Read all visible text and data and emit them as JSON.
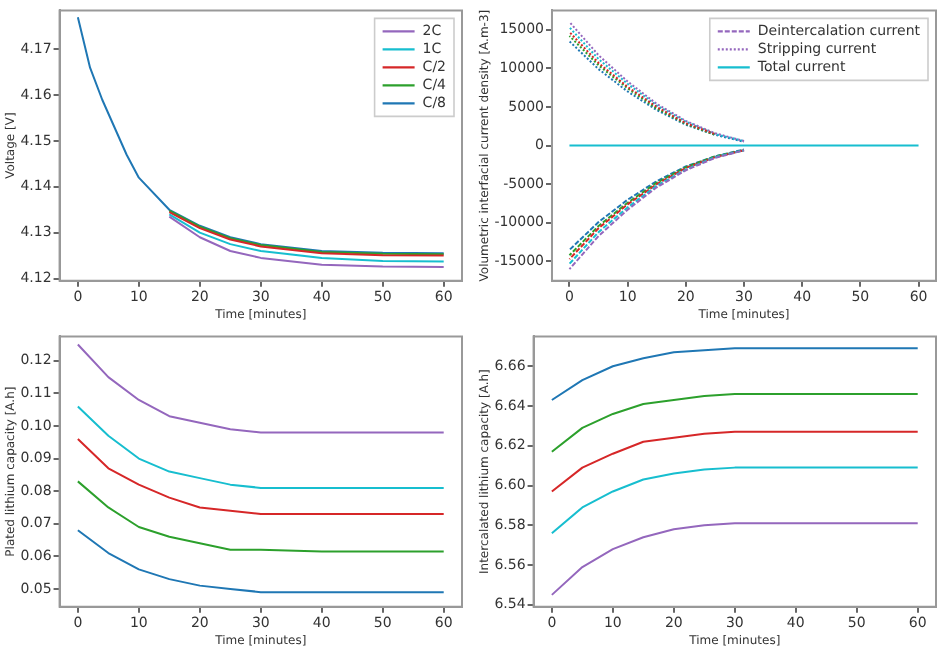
{
  "chart_data": [
    {
      "type": "line",
      "xlabel": "Time [minutes]",
      "ylabel": "Voltage [V]",
      "legend": "top right",
      "marker": "none",
      "grid": false,
      "xlim": [
        -3,
        63
      ],
      "xticks": [
        0,
        10,
        20,
        30,
        40,
        50,
        60
      ],
      "ylim": [
        4.1195,
        4.1785
      ],
      "yticks": [
        4.12,
        4.13,
        4.14,
        4.15,
        4.16,
        4.17
      ],
      "x": [
        0,
        2,
        4,
        6,
        8,
        10,
        15,
        20,
        25,
        30,
        40,
        50,
        60
      ],
      "series": [
        {
          "name": "2C",
          "color": "#9467bd",
          "values": [
            null,
            null,
            null,
            null,
            null,
            null,
            4.1335,
            4.129,
            4.126,
            4.1245,
            4.123,
            4.1226,
            4.1225
          ]
        },
        {
          "name": "1C",
          "color": "#17becf",
          "values": [
            null,
            null,
            null,
            null,
            null,
            null,
            4.134,
            4.13,
            4.1275,
            4.126,
            4.1245,
            4.1238,
            4.1237
          ]
        },
        {
          "name": "C/2",
          "color": "#d62728",
          "values": [
            null,
            null,
            null,
            null,
            null,
            null,
            4.1345,
            4.131,
            4.1285,
            4.127,
            4.1255,
            4.1251,
            4.125
          ]
        },
        {
          "name": "C/4",
          "color": "#2ca02c",
          "values": [
            null,
            null,
            null,
            null,
            null,
            null,
            4.1348,
            4.1313,
            4.1288,
            4.1273,
            4.1258,
            4.1254,
            4.1253
          ]
        },
        {
          "name": "C/8",
          "color": "#1f77b4",
          "values": [
            4.177,
            4.166,
            4.159,
            4.153,
            4.147,
            4.142,
            4.135,
            4.1315,
            4.129,
            4.1275,
            4.126,
            4.1256,
            4.1255
          ]
        }
      ]
    },
    {
      "type": "line",
      "xlabel": "Time [minutes]",
      "ylabel": "Volumetric interfacial current density [A.m-3]",
      "legend": "top right",
      "marker": "none",
      "grid": false,
      "xlim": [
        -3,
        63
      ],
      "xticks": [
        0,
        10,
        20,
        30,
        40,
        50,
        60
      ],
      "ylim": [
        -17500,
        17500
      ],
      "yticks": [
        -15000,
        -10000,
        -5000,
        0,
        5000,
        10000,
        15000
      ],
      "x": [
        0,
        5,
        10,
        15,
        20,
        25,
        30,
        35,
        40,
        50,
        60
      ],
      "series": [
        {
          "name": "Deintercalation current",
          "line_style": "dashed",
          "color": "#9467bd",
          "values": [
            -16000,
            -11700,
            -8300,
            -5400,
            -3200,
            -1600,
            -600,
            null,
            null,
            null,
            null
          ]
        },
        {
          "line_style": "dashed",
          "color": "#17becf",
          "values": [
            -15300,
            -11200,
            -8000,
            -5200,
            -3100,
            -1500,
            -600,
            null,
            null,
            null,
            null
          ]
        },
        {
          "line_style": "dashed",
          "color": "#d62728",
          "values": [
            -14700,
            -10700,
            -7600,
            -5000,
            -2900,
            -1500,
            -600,
            null,
            null,
            null,
            null
          ]
        },
        {
          "line_style": "dashed",
          "color": "#2ca02c",
          "values": [
            -14200,
            -10400,
            -7400,
            -4800,
            -2800,
            -1400,
            -600,
            null,
            null,
            null,
            null
          ]
        },
        {
          "line_style": "dashed",
          "color": "#1f77b4",
          "values": [
            -13500,
            -9900,
            -7000,
            -4600,
            -2700,
            -1400,
            -500,
            null,
            null,
            null,
            null
          ]
        },
        {
          "name": "Stripping current",
          "line_style": "dotted",
          "color": "#9467bd",
          "values": [
            16000,
            11700,
            8300,
            5400,
            3200,
            1600,
            600,
            null,
            null,
            null,
            null
          ]
        },
        {
          "line_style": "dotted",
          "color": "#17becf",
          "values": [
            15300,
            11200,
            8000,
            5200,
            3100,
            1500,
            600,
            null,
            null,
            null,
            null
          ]
        },
        {
          "line_style": "dotted",
          "color": "#d62728",
          "values": [
            14700,
            10700,
            7600,
            5000,
            2900,
            1500,
            null,
            null,
            null,
            null,
            null
          ]
        },
        {
          "line_style": "dotted",
          "color": "#2ca02c",
          "values": [
            14200,
            10400,
            7400,
            4800,
            2800,
            1400,
            null,
            null,
            null,
            null,
            null
          ]
        },
        {
          "line_style": "dotted",
          "color": "#1f77b4",
          "values": [
            13500,
            9900,
            7000,
            4600,
            2700,
            1400,
            500,
            null,
            null,
            null,
            null
          ]
        },
        {
          "name": "Total current",
          "line_style": "solid",
          "color": "#17becf",
          "values": [
            0,
            0,
            0,
            0,
            0,
            0,
            0,
            0,
            0,
            0,
            0
          ]
        }
      ]
    },
    {
      "type": "line",
      "xlabel": "Time [minutes]",
      "ylabel": "Plated lithium capacity [A.h]",
      "marker": "none",
      "grid": false,
      "xlim": [
        -3,
        63
      ],
      "xticks": [
        0,
        10,
        20,
        30,
        40,
        50,
        60
      ],
      "ylim": [
        0.0445,
        0.1275
      ],
      "yticks": [
        0.05,
        0.06,
        0.07,
        0.08,
        0.09,
        {
          "value": 0.1,
          "label": "0.10"
        },
        0.11,
        0.12
      ],
      "x": [
        0,
        5,
        10,
        15,
        20,
        25,
        30,
        40,
        50,
        60
      ],
      "series": [
        {
          "color": "#9467bd",
          "values": [
            0.125,
            0.115,
            0.108,
            0.103,
            0.101,
            0.099,
            0.098,
            0.098,
            0.098,
            0.098
          ]
        },
        {
          "color": "#17becf",
          "values": [
            0.106,
            0.097,
            0.09,
            0.086,
            0.084,
            0.082,
            0.081,
            0.081,
            0.081,
            0.081
          ]
        },
        {
          "color": "#d62728",
          "values": [
            0.096,
            0.087,
            0.082,
            0.078,
            0.075,
            0.074,
            0.073,
            0.073,
            0.073,
            0.073
          ]
        },
        {
          "color": "#2ca02c",
          "values": [
            0.083,
            0.075,
            0.069,
            0.066,
            0.064,
            0.062,
            0.062,
            0.0615,
            0.0615,
            0.0615
          ]
        },
        {
          "color": "#1f77b4",
          "values": [
            0.068,
            0.061,
            0.056,
            0.053,
            0.051,
            0.05,
            0.049,
            0.049,
            0.049,
            0.049
          ]
        }
      ]
    },
    {
      "type": "line",
      "xlabel": "Time [minutes]",
      "ylabel": "Intercalated lithium capacity [A.h]",
      "marker": "none",
      "grid": false,
      "xlim": [
        -3,
        63
      ],
      "xticks": [
        0,
        10,
        20,
        30,
        40,
        50,
        60
      ],
      "ylim": [
        6.539,
        6.675
      ],
      "yticks": [
        6.54,
        6.56,
        6.58,
        {
          "value": 6.6,
          "label": "6.60"
        },
        6.62,
        6.64,
        6.66
      ],
      "x": [
        0,
        5,
        10,
        15,
        20,
        25,
        30,
        40,
        50,
        60
      ],
      "series": [
        {
          "color": "#1f77b4",
          "values": [
            6.643,
            6.653,
            6.66,
            6.664,
            6.667,
            6.668,
            6.669,
            6.669,
            6.669,
            6.669
          ]
        },
        {
          "color": "#2ca02c",
          "values": [
            6.617,
            6.629,
            6.636,
            6.641,
            6.643,
            6.645,
            6.646,
            6.646,
            6.646,
            6.646
          ]
        },
        {
          "color": "#d62728",
          "values": [
            6.597,
            6.609,
            6.616,
            6.622,
            6.624,
            6.626,
            6.627,
            6.627,
            6.627,
            6.627
          ]
        },
        {
          "color": "#17becf",
          "values": [
            6.576,
            6.589,
            6.597,
            6.603,
            6.606,
            6.608,
            6.609,
            6.609,
            6.609,
            6.609
          ]
        },
        {
          "color": "#9467bd",
          "values": [
            6.545,
            6.559,
            6.568,
            6.574,
            6.578,
            6.58,
            6.581,
            6.581,
            6.581,
            6.581
          ]
        }
      ]
    }
  ]
}
